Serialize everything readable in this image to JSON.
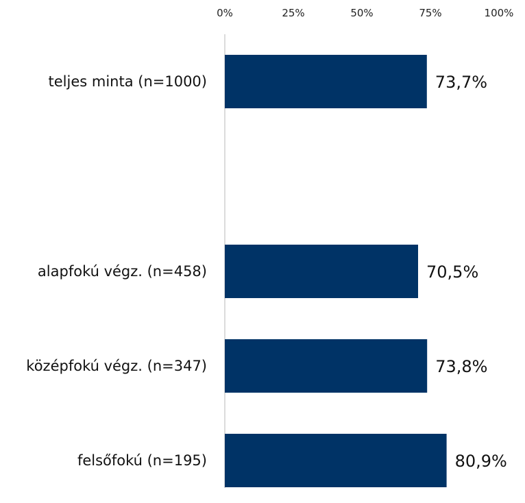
{
  "chart_data": {
    "type": "bar",
    "orientation": "horizontal",
    "axis_ticks": [
      "0%",
      "25%",
      "50%",
      "75%",
      "100%"
    ],
    "xlim": [
      0,
      100
    ],
    "grid": false,
    "bar_color": "#003366",
    "axis_color": "#cfcfcf",
    "categories": [
      "teljes minta (n=1000)",
      "alapfokú végz. (n=458)",
      "középfokú végz. (n=347)",
      "felsőfokú (n=195)"
    ],
    "values": [
      73.7,
      70.5,
      73.8,
      80.9
    ],
    "value_labels": [
      "73,7%",
      "70,5%",
      "73,8%",
      "80,9%"
    ]
  }
}
